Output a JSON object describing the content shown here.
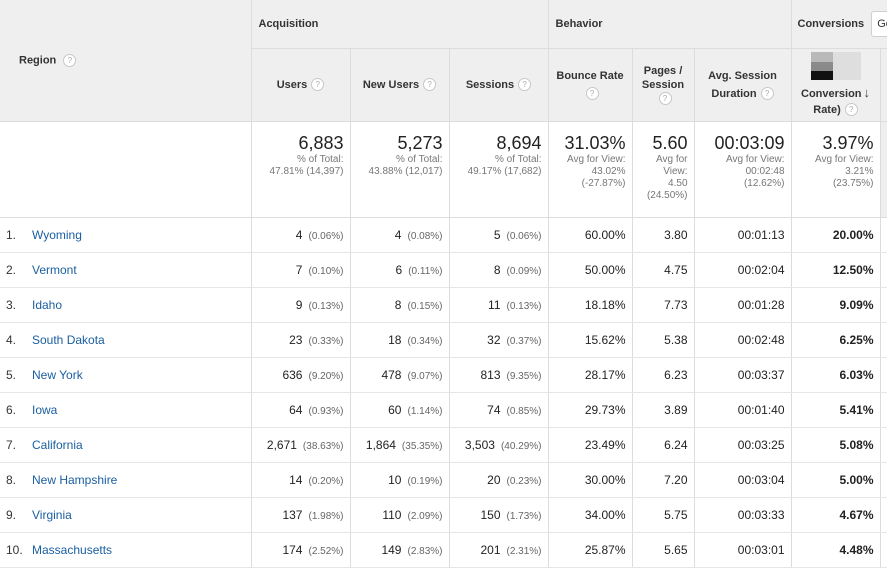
{
  "header": {
    "region_label": "Region",
    "groups": {
      "acquisition": "Acquisition",
      "behavior": "Behavior",
      "conversions": "Conversions"
    },
    "go_button": "Go",
    "columns": {
      "users": "Users",
      "new_users": "New Users",
      "sessions": "Sessions",
      "bounce_rate": "Bounce Rate",
      "pages_session_1": "Pages /",
      "pages_session_2": "Session",
      "avg_duration_1": "Avg. Session",
      "avg_duration_2": "Duration",
      "conv_rate_1": "Conversion",
      "conv_rate_2": "Rate)"
    },
    "help_glyph": "?",
    "sort_glyph": "↓"
  },
  "totals": {
    "users": {
      "value": "6,883",
      "line1": "% of Total:",
      "line2": "47.81% (14,397)"
    },
    "new_users": {
      "value": "5,273",
      "line1": "% of Total:",
      "line2": "43.88% (12,017)"
    },
    "sessions": {
      "value": "8,694",
      "line1": "% of Total:",
      "line2": "49.17% (17,682)"
    },
    "bounce_rate": {
      "value": "31.03%",
      "line1": "Avg for View:",
      "line2": "43.02%",
      "line3": "(-27.87%)"
    },
    "pages_session": {
      "value": "5.60",
      "line1": "Avg for",
      "line2": "View:",
      "line3": "4.50",
      "line4": "(24.50%)"
    },
    "avg_duration": {
      "value": "00:03:09",
      "line1": "Avg for View:",
      "line2": "00:02:48",
      "line3": "(12.62%)"
    },
    "conv_rate": {
      "value": "3.97%",
      "line1": "Avg for View:",
      "line2": "3.21%",
      "line3": "(23.75%)"
    }
  },
  "rows": [
    {
      "num": "1.",
      "region": "Wyoming",
      "users": "4",
      "users_pct": "(0.06%)",
      "new_users": "4",
      "new_users_pct": "(0.08%)",
      "sessions": "5",
      "sessions_pct": "(0.06%)",
      "bounce": "60.00%",
      "pages": "3.80",
      "duration": "00:01:13",
      "conv": "20.00%"
    },
    {
      "num": "2.",
      "region": "Vermont",
      "users": "7",
      "users_pct": "(0.10%)",
      "new_users": "6",
      "new_users_pct": "(0.11%)",
      "sessions": "8",
      "sessions_pct": "(0.09%)",
      "bounce": "50.00%",
      "pages": "4.75",
      "duration": "00:02:04",
      "conv": "12.50%"
    },
    {
      "num": "3.",
      "region": "Idaho",
      "users": "9",
      "users_pct": "(0.13%)",
      "new_users": "8",
      "new_users_pct": "(0.15%)",
      "sessions": "11",
      "sessions_pct": "(0.13%)",
      "bounce": "18.18%",
      "pages": "7.73",
      "duration": "00:01:28",
      "conv": "9.09%"
    },
    {
      "num": "4.",
      "region": "South Dakota",
      "users": "23",
      "users_pct": "(0.33%)",
      "new_users": "18",
      "new_users_pct": "(0.34%)",
      "sessions": "32",
      "sessions_pct": "(0.37%)",
      "bounce": "15.62%",
      "pages": "5.38",
      "duration": "00:02:48",
      "conv": "6.25%"
    },
    {
      "num": "5.",
      "region": "New York",
      "users": "636",
      "users_pct": "(9.20%)",
      "new_users": "478",
      "new_users_pct": "(9.07%)",
      "sessions": "813",
      "sessions_pct": "(9.35%)",
      "bounce": "28.17%",
      "pages": "6.23",
      "duration": "00:03:37",
      "conv": "6.03%"
    },
    {
      "num": "6.",
      "region": "Iowa",
      "users": "64",
      "users_pct": "(0.93%)",
      "new_users": "60",
      "new_users_pct": "(1.14%)",
      "sessions": "74",
      "sessions_pct": "(0.85%)",
      "bounce": "29.73%",
      "pages": "3.89",
      "duration": "00:01:40",
      "conv": "5.41%"
    },
    {
      "num": "7.",
      "region": "California",
      "users": "2,671",
      "users_pct": "(38.63%)",
      "new_users": "1,864",
      "new_users_pct": "(35.35%)",
      "sessions": "3,503",
      "sessions_pct": "(40.29%)",
      "bounce": "23.49%",
      "pages": "6.24",
      "duration": "00:03:25",
      "conv": "5.08%"
    },
    {
      "num": "8.",
      "region": "New Hampshire",
      "users": "14",
      "users_pct": "(0.20%)",
      "new_users": "10",
      "new_users_pct": "(0.19%)",
      "sessions": "20",
      "sessions_pct": "(0.23%)",
      "bounce": "30.00%",
      "pages": "7.20",
      "duration": "00:03:04",
      "conv": "5.00%"
    },
    {
      "num": "9.",
      "region": "Virginia",
      "users": "137",
      "users_pct": "(1.98%)",
      "new_users": "110",
      "new_users_pct": "(2.09%)",
      "sessions": "150",
      "sessions_pct": "(1.73%)",
      "bounce": "34.00%",
      "pages": "5.75",
      "duration": "00:03:33",
      "conv": "4.67%"
    },
    {
      "num": "10.",
      "region": "Massachusetts",
      "users": "174",
      "users_pct": "(2.52%)",
      "new_users": "149",
      "new_users_pct": "(2.83%)",
      "sessions": "201",
      "sessions_pct": "(2.31%)",
      "bounce": "25.87%",
      "pages": "5.65",
      "duration": "00:03:01",
      "conv": "4.48%"
    }
  ]
}
